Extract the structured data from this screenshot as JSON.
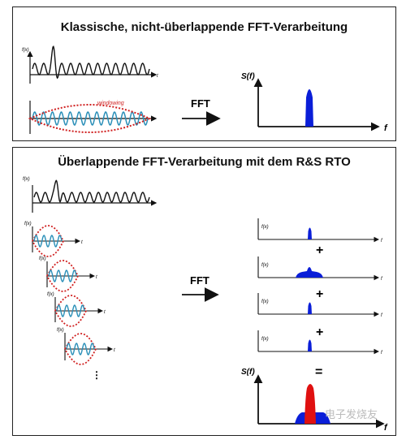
{
  "panel_top": {
    "title": "Klassische, nicht-überlappende FFT-Verarbeitung",
    "signal_axis_label": "f(x)",
    "time_label": "t",
    "window_label": "windowing",
    "arrow_label": "FFT",
    "spectrum_axis_label": "S(f)",
    "freq_label": "f"
  },
  "panel_bottom": {
    "title": "Überlappende FFT-Verarbeitung mit dem R&S RTO",
    "signal_axis_label": "f(x)",
    "time_label": "t",
    "arrow_label": "FFT",
    "spectra_labels": [
      "f(x)",
      "f(x)",
      "f(x)",
      "f(x)"
    ],
    "freq_label": "f",
    "plus_signs": [
      "+",
      "+",
      "+"
    ],
    "equals_sign": "=",
    "result_axis_label": "S(f)",
    "result_freq_label": "f",
    "continuation": "⋮"
  },
  "watermark": "电子发烧友",
  "colors": {
    "spectrum_blue": "#0a1ed8",
    "result_red": "#e01010",
    "window_red": "#d02020",
    "signal_blue": "#2a8fb8",
    "axis": "#111111"
  }
}
